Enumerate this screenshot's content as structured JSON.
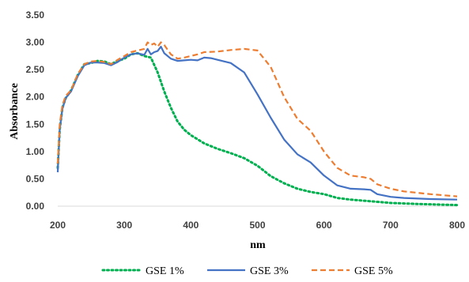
{
  "chart_data": {
    "type": "line",
    "xlabel": "nm",
    "ylabel": "Absorbance",
    "xlim": [
      200,
      800
    ],
    "ylim": [
      0,
      3.5
    ],
    "x_ticks": [
      "200",
      "300",
      "400",
      "500",
      "600",
      "700",
      "800"
    ],
    "y_ticks": [
      "0.00",
      "0.50",
      "1.00",
      "1.50",
      "2.00",
      "2.50",
      "3.00",
      "3.50"
    ],
    "grid": false,
    "legend_position": "bottom",
    "series": [
      {
        "name": "GSE 1%",
        "color": "#00b050",
        "line_style": "dotted",
        "points": [
          [
            200,
            0.7
          ],
          [
            203,
            1.4
          ],
          [
            207,
            1.8
          ],
          [
            212,
            1.98
          ],
          [
            220,
            2.12
          ],
          [
            230,
            2.4
          ],
          [
            240,
            2.6
          ],
          [
            250,
            2.62
          ],
          [
            260,
            2.66
          ],
          [
            270,
            2.65
          ],
          [
            280,
            2.6
          ],
          [
            290,
            2.66
          ],
          [
            300,
            2.7
          ],
          [
            310,
            2.78
          ],
          [
            320,
            2.8
          ],
          [
            330,
            2.75
          ],
          [
            340,
            2.72
          ],
          [
            350,
            2.45
          ],
          [
            360,
            2.1
          ],
          [
            370,
            1.8
          ],
          [
            380,
            1.55
          ],
          [
            390,
            1.4
          ],
          [
            400,
            1.3
          ],
          [
            420,
            1.15
          ],
          [
            440,
            1.05
          ],
          [
            460,
            0.97
          ],
          [
            480,
            0.88
          ],
          [
            500,
            0.74
          ],
          [
            520,
            0.55
          ],
          [
            540,
            0.42
          ],
          [
            560,
            0.32
          ],
          [
            580,
            0.26
          ],
          [
            600,
            0.22
          ],
          [
            620,
            0.15
          ],
          [
            640,
            0.12
          ],
          [
            660,
            0.1
          ],
          [
            680,
            0.08
          ],
          [
            700,
            0.06
          ],
          [
            740,
            0.04
          ],
          [
            800,
            0.02
          ]
        ]
      },
      {
        "name": "GSE 3%",
        "color": "#4472c4",
        "line_style": "solid",
        "points": [
          [
            200,
            0.62
          ],
          [
            203,
            1.4
          ],
          [
            207,
            1.78
          ],
          [
            212,
            1.98
          ],
          [
            220,
            2.1
          ],
          [
            230,
            2.38
          ],
          [
            240,
            2.58
          ],
          [
            250,
            2.63
          ],
          [
            260,
            2.63
          ],
          [
            270,
            2.62
          ],
          [
            280,
            2.58
          ],
          [
            290,
            2.64
          ],
          [
            300,
            2.72
          ],
          [
            310,
            2.78
          ],
          [
            320,
            2.8
          ],
          [
            330,
            2.77
          ],
          [
            335,
            2.88
          ],
          [
            340,
            2.78
          ],
          [
            345,
            2.82
          ],
          [
            350,
            2.84
          ],
          [
            355,
            2.92
          ],
          [
            360,
            2.8
          ],
          [
            370,
            2.7
          ],
          [
            380,
            2.66
          ],
          [
            390,
            2.67
          ],
          [
            400,
            2.68
          ],
          [
            410,
            2.67
          ],
          [
            420,
            2.72
          ],
          [
            430,
            2.71
          ],
          [
            440,
            2.68
          ],
          [
            460,
            2.62
          ],
          [
            480,
            2.45
          ],
          [
            500,
            2.05
          ],
          [
            520,
            1.62
          ],
          [
            540,
            1.22
          ],
          [
            560,
            0.95
          ],
          [
            580,
            0.8
          ],
          [
            600,
            0.56
          ],
          [
            620,
            0.38
          ],
          [
            640,
            0.32
          ],
          [
            660,
            0.31
          ],
          [
            670,
            0.3
          ],
          [
            680,
            0.22
          ],
          [
            700,
            0.17
          ],
          [
            720,
            0.15
          ],
          [
            760,
            0.13
          ],
          [
            800,
            0.12
          ]
        ]
      },
      {
        "name": "GSE 5%",
        "color": "#ed7d31",
        "line_style": "dashed",
        "points": [
          [
            200,
            0.78
          ],
          [
            203,
            1.5
          ],
          [
            207,
            1.85
          ],
          [
            212,
            2.02
          ],
          [
            220,
            2.12
          ],
          [
            230,
            2.42
          ],
          [
            240,
            2.6
          ],
          [
            250,
            2.65
          ],
          [
            260,
            2.66
          ],
          [
            270,
            2.64
          ],
          [
            280,
            2.6
          ],
          [
            290,
            2.68
          ],
          [
            300,
            2.75
          ],
          [
            310,
            2.82
          ],
          [
            320,
            2.85
          ],
          [
            330,
            2.88
          ],
          [
            335,
            3.0
          ],
          [
            340,
            2.95
          ],
          [
            345,
            2.98
          ],
          [
            350,
            2.92
          ],
          [
            355,
            3.0
          ],
          [
            360,
            2.95
          ],
          [
            370,
            2.78
          ],
          [
            380,
            2.7
          ],
          [
            390,
            2.72
          ],
          [
            400,
            2.75
          ],
          [
            410,
            2.78
          ],
          [
            420,
            2.82
          ],
          [
            440,
            2.83
          ],
          [
            460,
            2.86
          ],
          [
            480,
            2.88
          ],
          [
            500,
            2.85
          ],
          [
            520,
            2.55
          ],
          [
            540,
            2.0
          ],
          [
            560,
            1.6
          ],
          [
            580,
            1.38
          ],
          [
            600,
            1.0
          ],
          [
            620,
            0.7
          ],
          [
            640,
            0.56
          ],
          [
            660,
            0.53
          ],
          [
            670,
            0.5
          ],
          [
            680,
            0.4
          ],
          [
            700,
            0.32
          ],
          [
            720,
            0.27
          ],
          [
            760,
            0.22
          ],
          [
            800,
            0.18
          ]
        ]
      }
    ]
  }
}
